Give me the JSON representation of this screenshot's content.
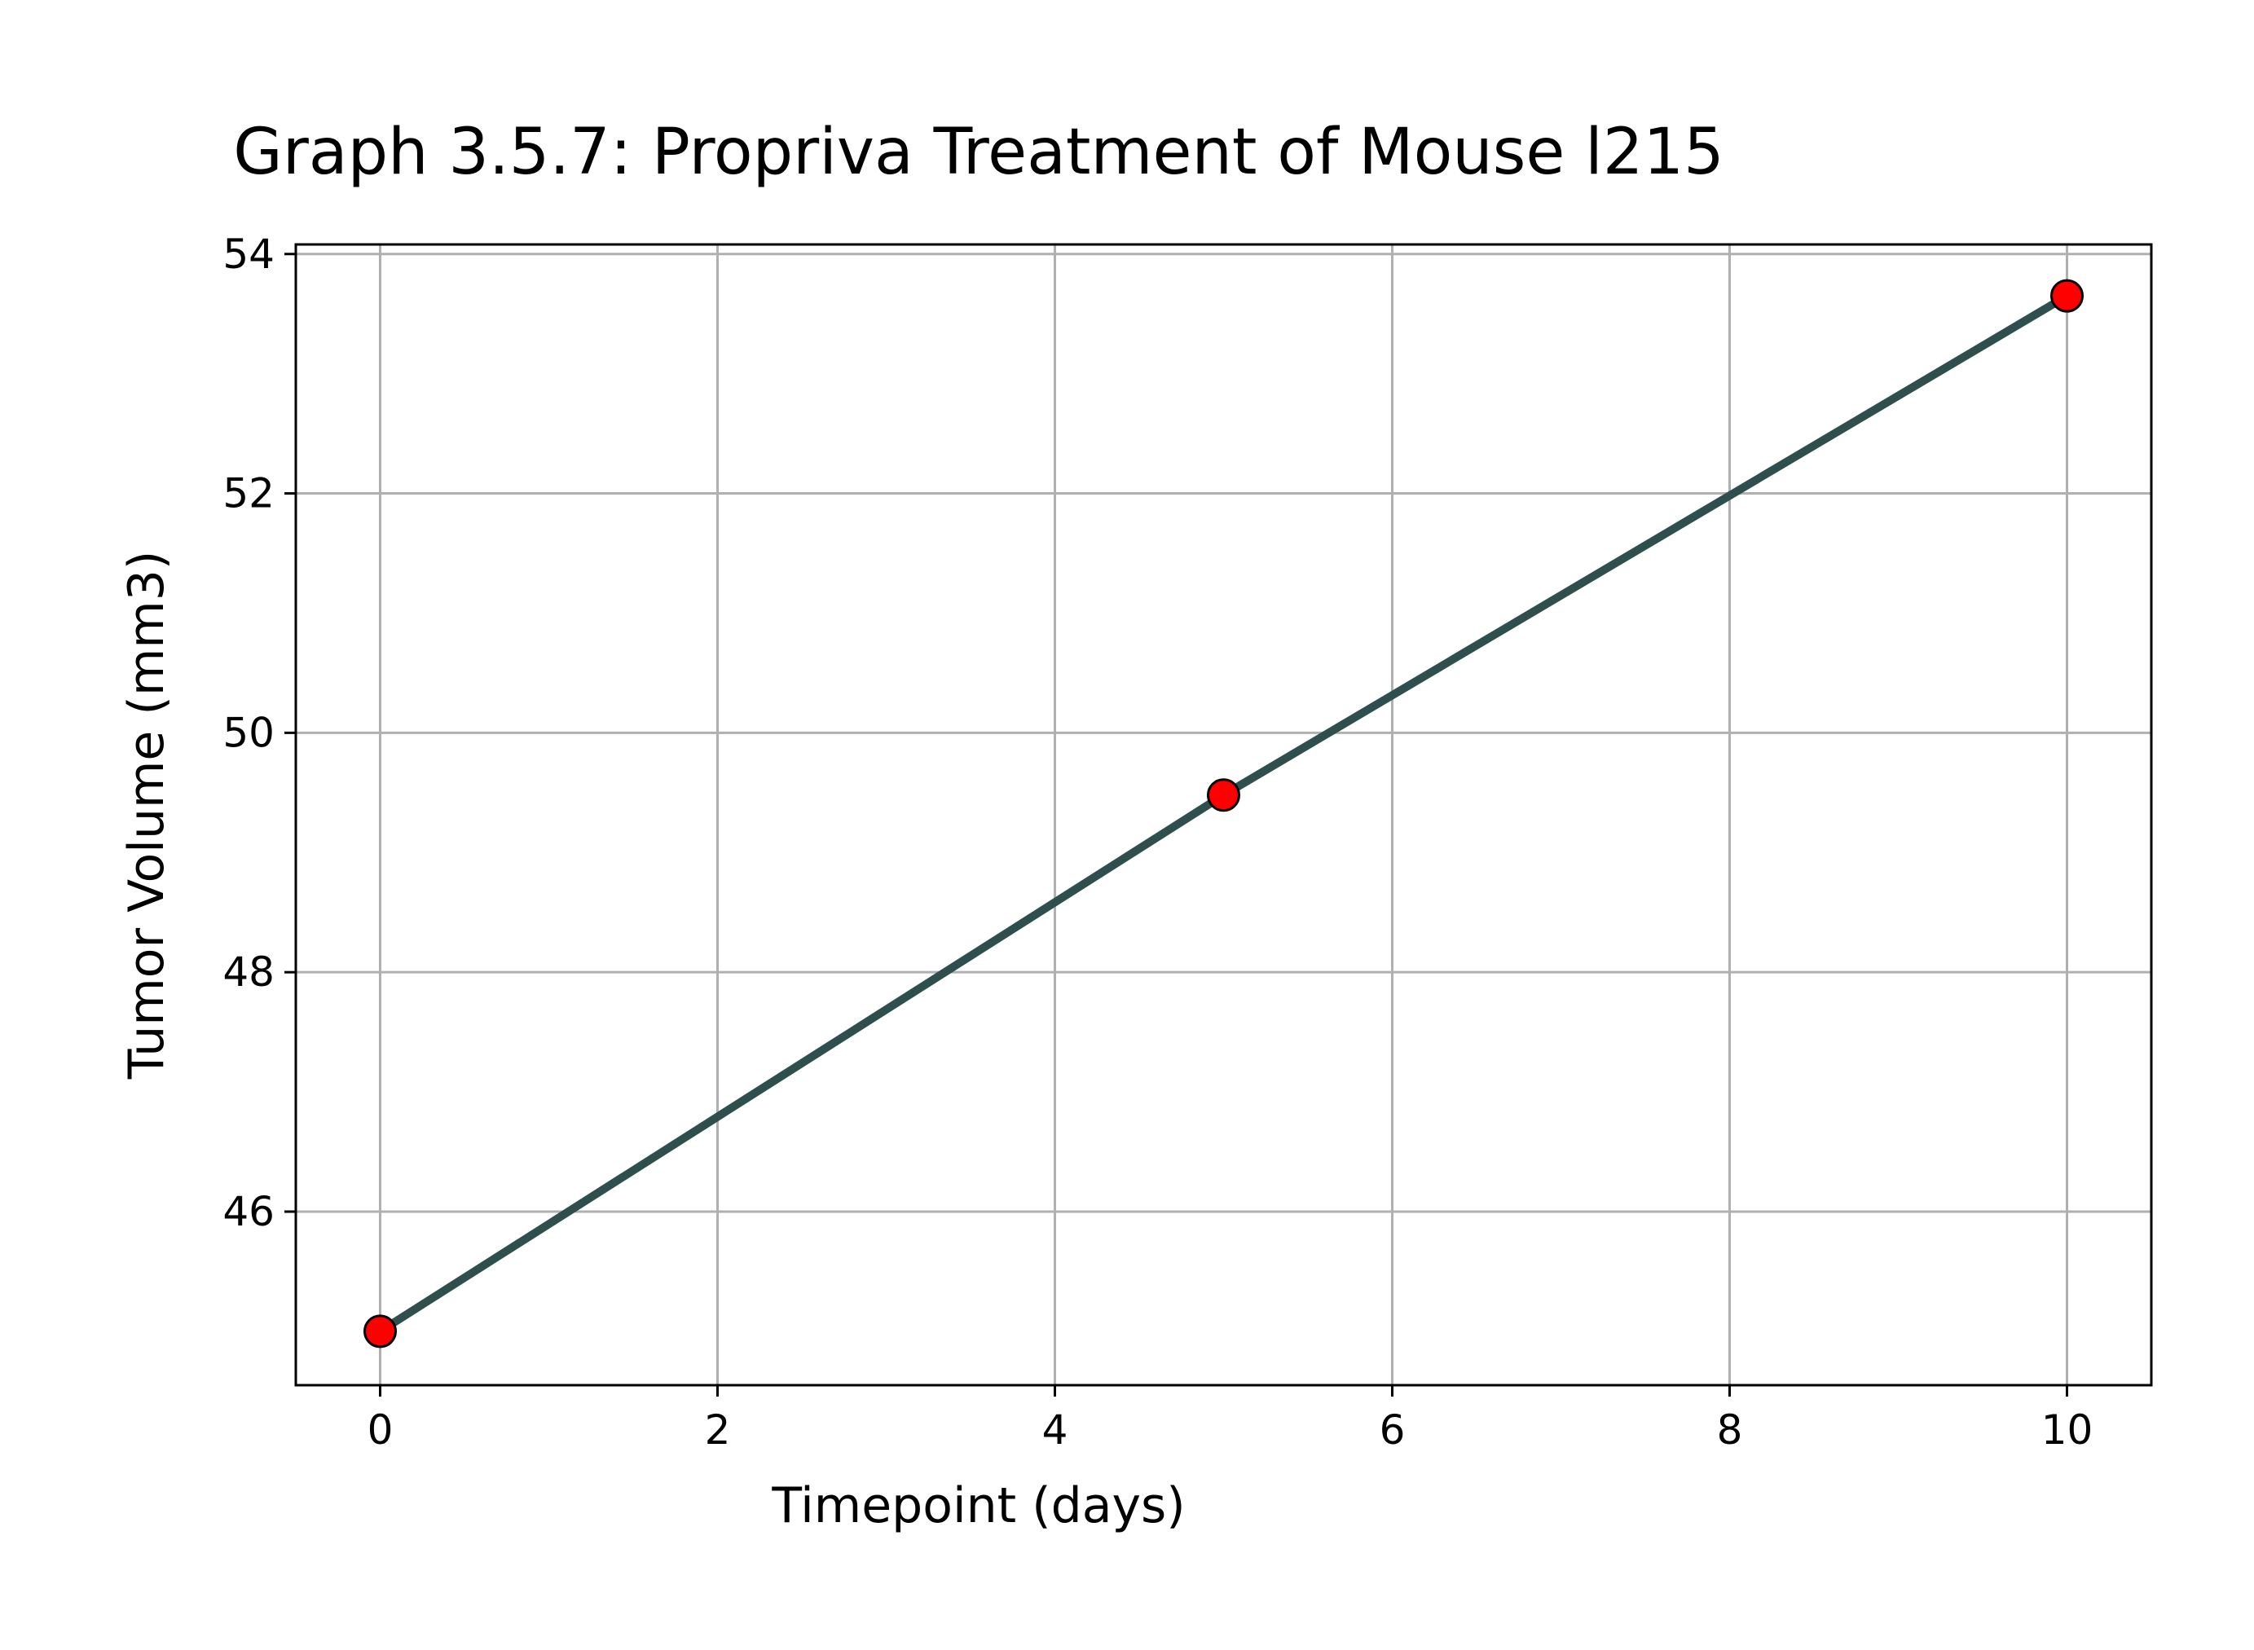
{
  "chart_data": {
    "type": "line",
    "title": "Graph 3.5.7: Propriva Treatment of Mouse l215",
    "xlabel": "Timepoint (days)",
    "ylabel": "Tumor Volume (mm3)",
    "x": [
      0,
      5,
      10
    ],
    "series": [
      {
        "values": [
          45.0,
          49.48,
          53.65
        ]
      }
    ],
    "xlim": [
      -0.5,
      10.5
    ],
    "ylim": [
      44.55,
      54.08
    ],
    "xticks": [
      0,
      2,
      4,
      6,
      8,
      10
    ],
    "xtick_labels": [
      "0",
      "2",
      "4",
      "6",
      "8",
      "10"
    ],
    "yticks": [
      46,
      48,
      50,
      52,
      54
    ],
    "ytick_labels": [
      "46",
      "48",
      "50",
      "52",
      "54"
    ],
    "grid": true,
    "legend": false,
    "colors": {
      "line": "#2f4f4f",
      "marker_fill": "#ff0000",
      "marker_edge": "#000000",
      "grid": "#b0b0b0",
      "axes": "#000000"
    }
  }
}
